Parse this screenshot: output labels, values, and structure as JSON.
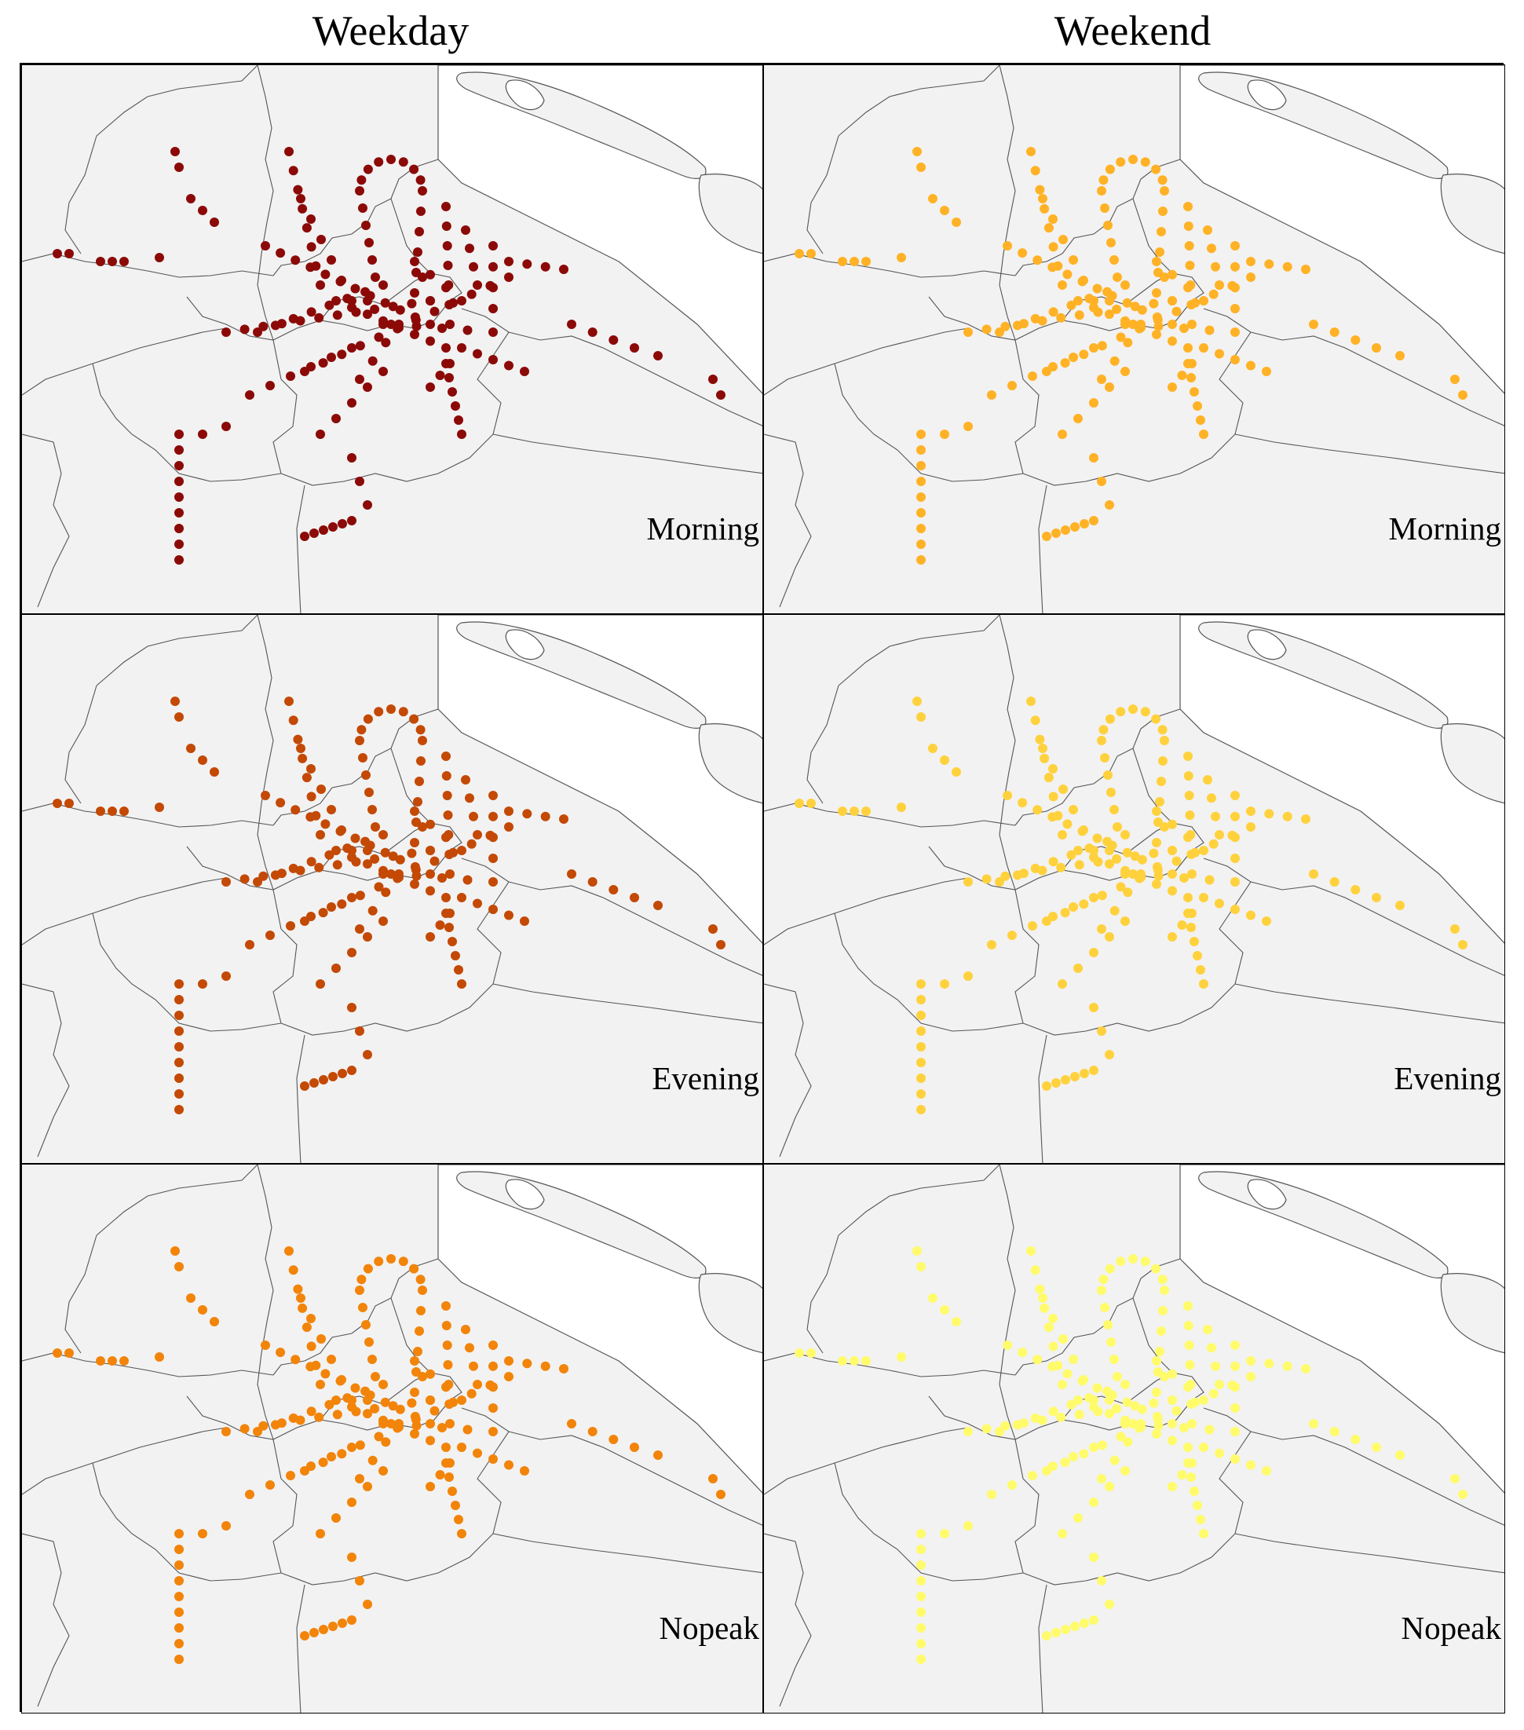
{
  "columns": {
    "weekday": "Weekday",
    "weekend": "Weekend"
  },
  "panels": [
    {
      "id": "weekday-morning",
      "label": "Morning",
      "dot_color": "#8b0a07"
    },
    {
      "id": "weekend-morning",
      "label": "Morning",
      "dot_color": "#ffb225"
    },
    {
      "id": "weekday-evening",
      "label": "Evening",
      "dot_color": "#c34905"
    },
    {
      "id": "weekend-evening",
      "label": "Evening",
      "dot_color": "#ffd13c"
    },
    {
      "id": "weekday-nopeak",
      "label": "Nopeak",
      "dot_color": "#f2840a"
    },
    {
      "id": "weekend-nopeak",
      "label": "Nopeak",
      "dot_color": "#fffb6b"
    }
  ],
  "colors": {
    "land": "#f2f2f2",
    "border": "#555555",
    "water": "#ffffff"
  }
}
